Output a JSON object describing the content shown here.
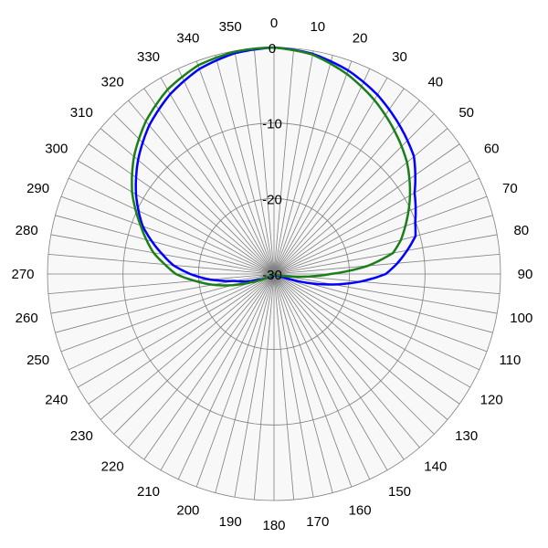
{
  "chart_data": {
    "type": "line",
    "subtype": "polar",
    "title": "",
    "angle_labels": [
      "0",
      "10",
      "20",
      "30",
      "40",
      "50",
      "60",
      "70",
      "80",
      "90",
      "100",
      "110",
      "120",
      "130",
      "140",
      "150",
      "160",
      "170",
      "180",
      "190",
      "200",
      "210",
      "220",
      "230",
      "240",
      "250",
      "260",
      "270",
      "280",
      "290",
      "300",
      "310",
      "320",
      "330",
      "340",
      "350"
    ],
    "radial_tick_labels": [
      "0",
      "-10",
      "-20",
      "-30"
    ],
    "radial_range": [
      -30,
      0
    ],
    "angle_direction": "clockwise",
    "zero_angle": "top",
    "grid": true,
    "series": [
      {
        "color": "#0000ff",
        "points": [
          [
            0,
            0
          ],
          [
            10,
            -0.4
          ],
          [
            20,
            -1.3
          ],
          [
            30,
            -2.6
          ],
          [
            40,
            -4.2
          ],
          [
            50,
            -5.8
          ],
          [
            60,
            -8.5
          ],
          [
            70,
            -10.1
          ],
          [
            75,
            -10.6
          ],
          [
            80,
            -12.1
          ],
          [
            85,
            -13.6
          ],
          [
            90,
            -15.2
          ],
          [
            95,
            -18.5
          ],
          [
            100,
            -22.0
          ],
          [
            105,
            -25.5
          ],
          [
            110,
            -28.8
          ],
          [
            120,
            -30
          ],
          [
            180,
            -30
          ],
          [
            240,
            -29.3
          ],
          [
            250,
            -27.8
          ],
          [
            260,
            -24.7
          ],
          [
            265,
            -21.5
          ],
          [
            270,
            -18.9
          ],
          [
            275,
            -16.6
          ],
          [
            280,
            -15.0
          ],
          [
            290,
            -11.5
          ],
          [
            300,
            -8.9
          ],
          [
            310,
            -6.5
          ],
          [
            320,
            -4.3
          ],
          [
            330,
            -2.5
          ],
          [
            340,
            -1.1
          ],
          [
            350,
            -0.3
          ]
        ]
      },
      {
        "color": "#1a7f1a",
        "points": [
          [
            0,
            0
          ],
          [
            10,
            -0.5
          ],
          [
            20,
            -1.8
          ],
          [
            30,
            -3.4
          ],
          [
            40,
            -5.2
          ],
          [
            50,
            -7.0
          ],
          [
            60,
            -9.2
          ],
          [
            70,
            -11.5
          ],
          [
            75,
            -12.6
          ],
          [
            80,
            -14.0
          ],
          [
            85,
            -17.5
          ],
          [
            90,
            -22.5
          ],
          [
            95,
            -26.0
          ],
          [
            100,
            -28.5
          ],
          [
            110,
            -30
          ],
          [
            180,
            -30
          ],
          [
            240,
            -29.8
          ],
          [
            250,
            -26.8
          ],
          [
            260,
            -21.8
          ],
          [
            265,
            -19.5
          ],
          [
            270,
            -17.0
          ],
          [
            275,
            -15.5
          ],
          [
            280,
            -13.8
          ],
          [
            290,
            -11.2
          ],
          [
            300,
            -8.3
          ],
          [
            310,
            -5.8
          ],
          [
            320,
            -3.6
          ],
          [
            330,
            -1.8
          ],
          [
            340,
            -0.6
          ],
          [
            350,
            -0.1
          ]
        ]
      }
    ]
  }
}
